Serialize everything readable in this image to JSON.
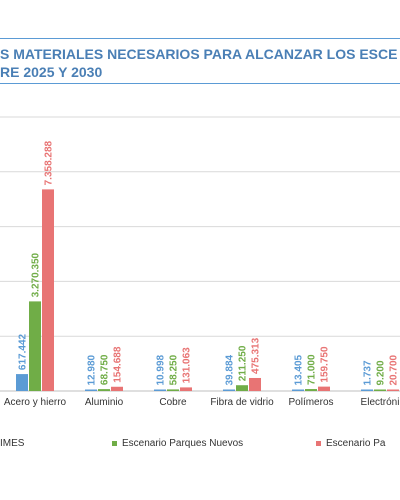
{
  "title": {
    "line1": "S MATERIALES NECESARIOS PARA ALCANZAR LOS ESCE",
    "line2": "RE 2025 Y 2030"
  },
  "colors": {
    "blue": "#5b9bd5",
    "green": "#70ad47",
    "red": "#e87474"
  },
  "legend": {
    "item0": "IMES",
    "item1": "Escenario Parques Nuevos",
    "item2": "Escenario Pa"
  },
  "chart_data": {
    "type": "bar",
    "categories": [
      "Acero y hierro",
      "Aluminio",
      "Cobre",
      "Fibra de vidrio",
      "Polímeros",
      "Electróni"
    ],
    "series": [
      {
        "name": "IMES",
        "values": [
          617442,
          12980,
          10998,
          39884,
          13405,
          1737
        ],
        "labels": [
          "617.442",
          "12.980",
          "10.998",
          "39.884",
          "13.405",
          "1.737"
        ]
      },
      {
        "name": "Escenario Parques Nuevos",
        "values": [
          3270350,
          68750,
          58250,
          211250,
          71000,
          9200
        ],
        "labels": [
          "3.270.350",
          "68.750",
          "58.250",
          "211.250",
          "71.000",
          "9.200"
        ]
      },
      {
        "name": "Escenario Pa",
        "values": [
          7358288,
          154688,
          131063,
          475313,
          159750,
          20700
        ],
        "labels": [
          "7.358.288",
          "154.688",
          "131.063",
          "475.313",
          "159.750",
          "20.700"
        ]
      }
    ],
    "ylim": [
      0,
      10000000
    ],
    "grid": true,
    "legend_position": "bottom"
  }
}
